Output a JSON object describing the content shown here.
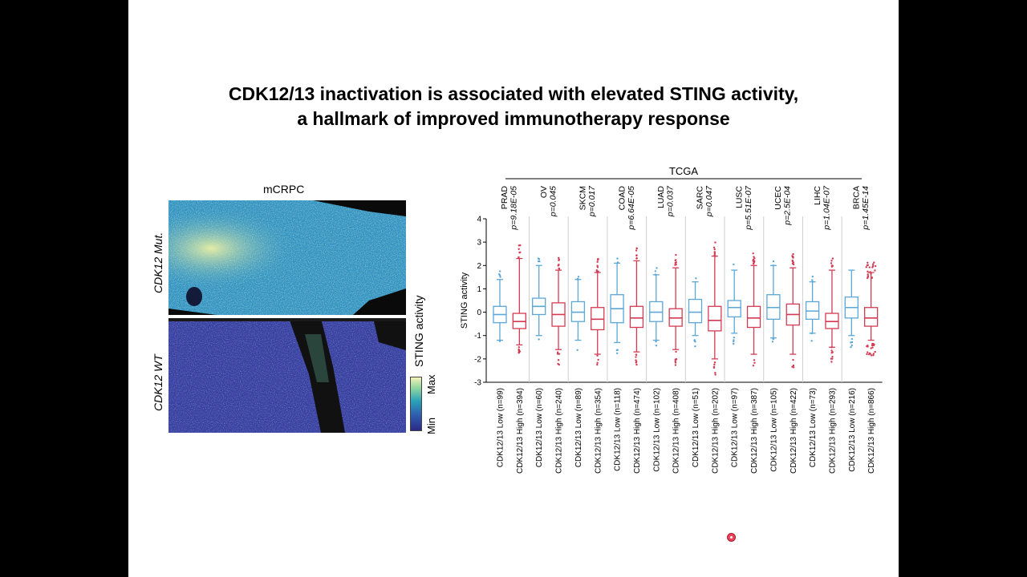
{
  "slide": {
    "title_lines": [
      "CDK12/13 inactivation is associated with elevated STING activity,",
      "a hallmark of improved immunotherapy response"
    ]
  },
  "image_panel": {
    "label": "mCRPC",
    "row_labels": [
      "CDK12 Mut.",
      "CDK12 WT"
    ],
    "colorbar": {
      "title": "STING activity",
      "max_label": "Max",
      "min_label": "Min",
      "colors": [
        "#2b2a86",
        "#2f5fb0",
        "#2aa1b8",
        "#8fd7a0",
        "#f4f2b8"
      ]
    }
  },
  "chart_data": {
    "type": "box",
    "group_label": "TCGA",
    "ylabel": "STING activity",
    "ylim": [
      -3,
      4
    ],
    "yticks": [
      -3,
      -2,
      -1,
      0,
      1,
      2,
      3,
      4
    ],
    "colors": {
      "low": "#5aa7d8",
      "high": "#d43b52"
    },
    "cancers": [
      {
        "name": "PRAD",
        "p": "p=9.18E-05",
        "low": {
          "label": "CDK12/13 Low (n=99)",
          "q1": -0.45,
          "median": -0.1,
          "q3": 0.25,
          "wlow": -1.2,
          "whigh": 1.4
        },
        "high": {
          "label": "CDK12/13 High (n=394)",
          "q1": -0.7,
          "median": -0.4,
          "q3": -0.05,
          "wlow": -1.4,
          "whigh": 2.3
        }
      },
      {
        "name": "OV",
        "p": "p=0.045",
        "low": {
          "label": "CDK12/13 Low (n=60)",
          "q1": -0.1,
          "median": 0.25,
          "q3": 0.6,
          "wlow": -1.0,
          "whigh": 2.0
        },
        "high": {
          "label": "CDK12/13 High (n=240)",
          "q1": -0.6,
          "median": -0.1,
          "q3": 0.4,
          "wlow": -1.6,
          "whigh": 1.8
        }
      },
      {
        "name": "SKCM",
        "p": "p=0.017",
        "low": {
          "label": "CDK12/13 Low (n=89)",
          "q1": -0.4,
          "median": 0.0,
          "q3": 0.45,
          "wlow": -1.2,
          "whigh": 1.4
        },
        "high": {
          "label": "CDK12/13 High (n=354)",
          "q1": -0.75,
          "median": -0.3,
          "q3": 0.2,
          "wlow": -1.8,
          "whigh": 1.7
        }
      },
      {
        "name": "COAD",
        "p": "p=6.64E-05",
        "low": {
          "label": "CDK12/13 Low (n=118)",
          "q1": -0.45,
          "median": 0.15,
          "q3": 0.75,
          "wlow": -1.3,
          "whigh": 2.1
        },
        "high": {
          "label": "CDK12/13 High (n=474)",
          "q1": -0.65,
          "median": -0.25,
          "q3": 0.25,
          "wlow": -1.7,
          "whigh": 2.2
        }
      },
      {
        "name": "LUAD",
        "p": "p=0.037",
        "low": {
          "label": "CDK12/13 Low (n=102)",
          "q1": -0.4,
          "median": 0.0,
          "q3": 0.45,
          "wlow": -1.2,
          "whigh": 1.6
        },
        "high": {
          "label": "CDK12/13 High (n=408)",
          "q1": -0.6,
          "median": -0.25,
          "q3": 0.15,
          "wlow": -1.6,
          "whigh": 1.9
        }
      },
      {
        "name": "SARC",
        "p": "p=0.047",
        "low": {
          "label": "CDK12/13 Low (n=51)",
          "q1": -0.45,
          "median": 0.0,
          "q3": 0.55,
          "wlow": -1.0,
          "whigh": 1.3
        },
        "high": {
          "label": "CDK12/13 High (n=202)",
          "q1": -0.8,
          "median": -0.35,
          "q3": 0.25,
          "wlow": -2.0,
          "whigh": 2.4
        }
      },
      {
        "name": "LUSC",
        "p": "p=5.51E-07",
        "low": {
          "label": "CDK12/13 Low (n=97)",
          "q1": -0.2,
          "median": 0.2,
          "q3": 0.5,
          "wlow": -0.9,
          "whigh": 1.8
        },
        "high": {
          "label": "CDK12/13 High (n=387)",
          "q1": -0.65,
          "median": -0.25,
          "q3": 0.25,
          "wlow": -1.8,
          "whigh": 2.0
        }
      },
      {
        "name": "UCEC",
        "p": "p=2.5E-04",
        "low": {
          "label": "CDK12/13 Low (n=105)",
          "q1": -0.3,
          "median": 0.2,
          "q3": 0.75,
          "wlow": -1.1,
          "whigh": 2.0
        },
        "high": {
          "label": "CDK12/13 High (n=422)",
          "q1": -0.55,
          "median": -0.1,
          "q3": 0.35,
          "wlow": -1.8,
          "whigh": 1.9
        }
      },
      {
        "name": "LIHC",
        "p": "p=1.04E-07",
        "low": {
          "label": "CDK12/13 Low (n=73)",
          "q1": -0.3,
          "median": 0.05,
          "q3": 0.45,
          "wlow": -0.9,
          "whigh": 1.3
        },
        "high": {
          "label": "CDK12/13 High (n=293)",
          "q1": -0.7,
          "median": -0.4,
          "q3": -0.05,
          "wlow": -1.5,
          "whigh": 1.8
        }
      },
      {
        "name": "BRCA",
        "p": "p=1.45E-14",
        "low": {
          "label": "CDK12/13 Low (n=216)",
          "q1": -0.25,
          "median": 0.2,
          "q3": 0.65,
          "wlow": -1.0,
          "whigh": 1.8
        },
        "high": {
          "label": "CDK12/13 High (n=866)",
          "q1": -0.6,
          "median": -0.25,
          "q3": 0.2,
          "wlow": -1.2,
          "whigh": 1.7
        }
      }
    ]
  }
}
